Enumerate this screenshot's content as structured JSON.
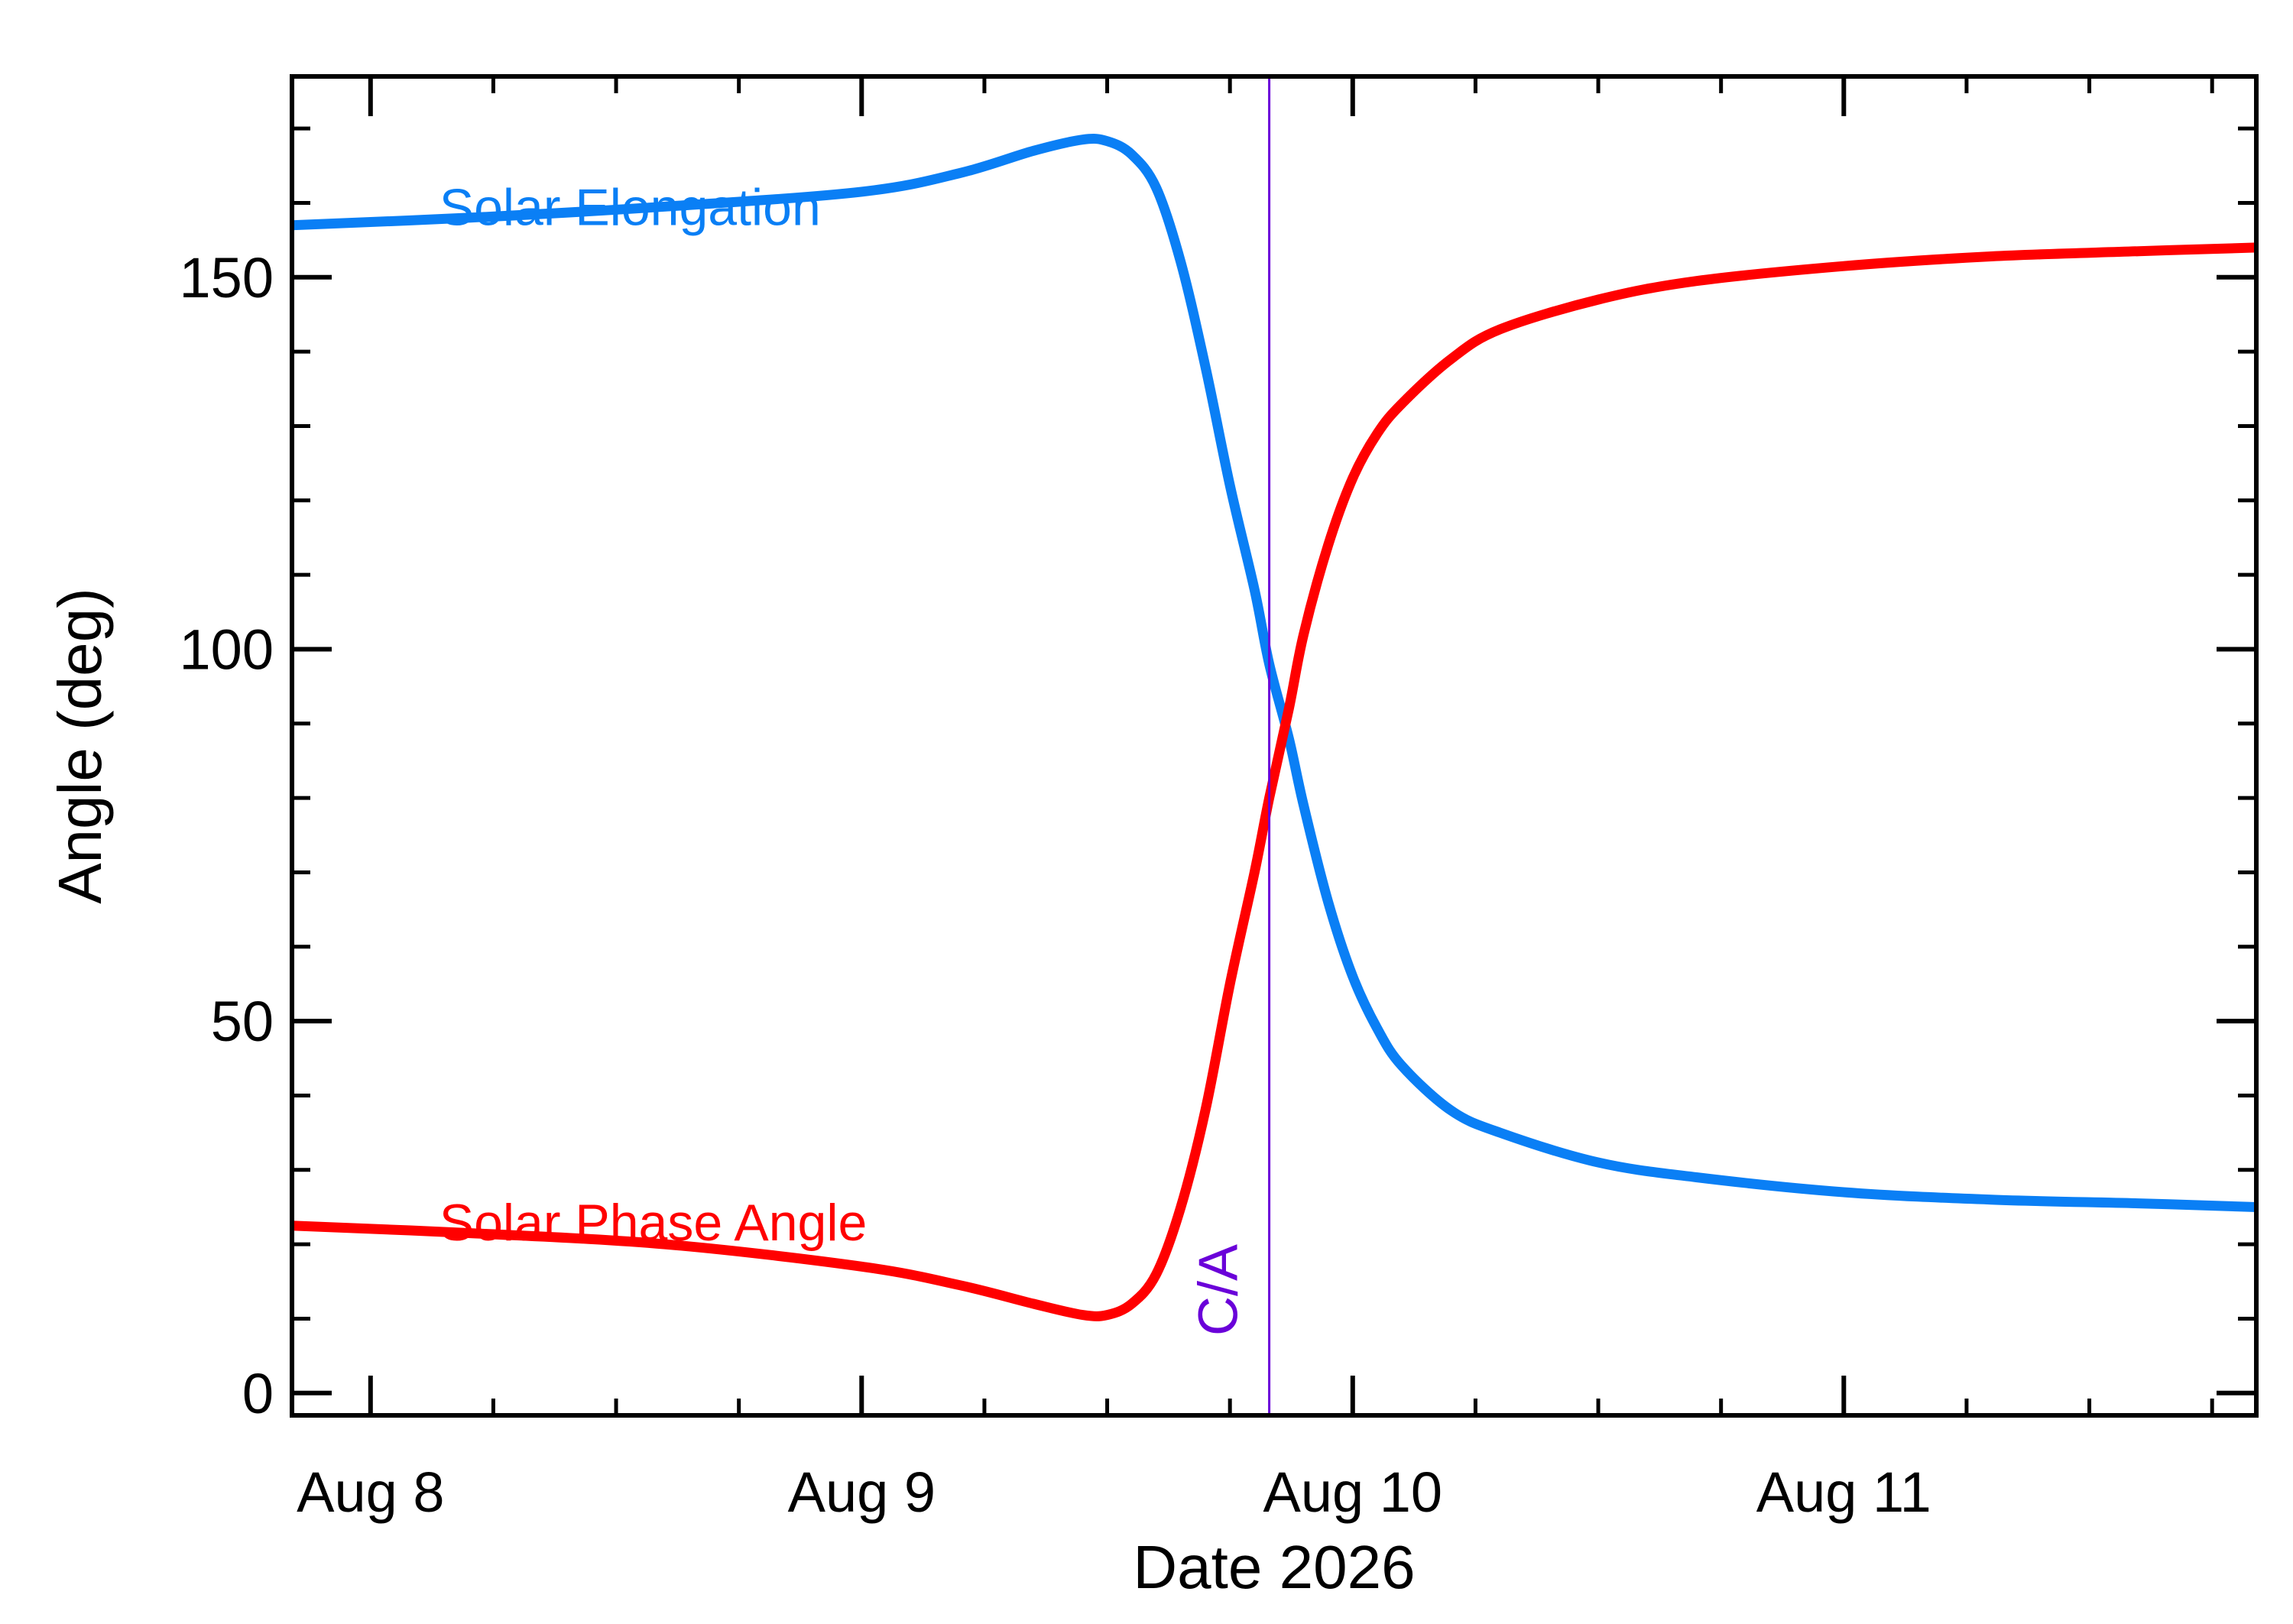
{
  "chart_data": {
    "type": "line",
    "xlabel": "Date 2026",
    "ylabel": "Angle (deg)",
    "xlim": [
      7.84,
      11.84
    ],
    "ylim": [
      -3,
      177
    ],
    "x_ticks": [
      {
        "value": 8,
        "label": "Aug  8"
      },
      {
        "value": 9,
        "label": "Aug  9"
      },
      {
        "value": 10,
        "label": "Aug 10"
      },
      {
        "value": 11,
        "label": "Aug 11"
      }
    ],
    "y_ticks": [
      {
        "value": 0,
        "label": "0"
      },
      {
        "value": 50,
        "label": "50"
      },
      {
        "value": 100,
        "label": "100"
      },
      {
        "value": 150,
        "label": "150"
      }
    ],
    "y_minor_step": 10,
    "x_minor_step": 0.25,
    "grid": false,
    "marker": {
      "label": "C/A",
      "x": 9.83,
      "color": "#6a00d9"
    },
    "series": [
      {
        "name": "Solar Elongation",
        "color": "#0a7ff5",
        "x": [
          7.84,
          8.2,
          8.6,
          9.0,
          9.2,
          9.35,
          9.45,
          9.5,
          9.55,
          9.6,
          9.65,
          9.7,
          9.75,
          9.8,
          9.83,
          9.87,
          9.9,
          9.95,
          10.0,
          10.05,
          10.1,
          10.2,
          10.3,
          10.5,
          10.7,
          11.0,
          11.3,
          11.6,
          11.84
        ],
        "y": [
          157,
          158,
          159.5,
          161.5,
          164,
          167,
          168.5,
          168.3,
          166.5,
          162,
          152,
          138,
          122,
          108,
          98,
          88,
          79,
          66,
          56,
          49,
          44,
          38,
          35,
          31,
          29,
          27,
          26,
          25.5,
          25
        ]
      },
      {
        "name": "Solar Phase Angle",
        "color": "#ff0000",
        "x": [
          7.84,
          8.2,
          8.6,
          9.0,
          9.2,
          9.35,
          9.45,
          9.5,
          9.55,
          9.6,
          9.65,
          9.7,
          9.75,
          9.8,
          9.83,
          9.87,
          9.9,
          9.95,
          10.0,
          10.05,
          10.1,
          10.2,
          10.3,
          10.5,
          10.7,
          11.0,
          11.3,
          11.6,
          11.84
        ],
        "y": [
          22.5,
          21.5,
          20,
          17,
          14.5,
          12,
          10.5,
          10.5,
          12,
          16,
          25,
          38,
          55,
          70,
          80,
          92,
          102,
          114,
          123,
          129,
          133,
          139,
          143,
          147,
          149.5,
          151.5,
          152.8,
          153.5,
          154
        ]
      }
    ],
    "annotations": [
      {
        "text": "Solar Elongation",
        "series": 0,
        "x": 8.14,
        "y": 159.5
      },
      {
        "text": "Solar Phase Angle",
        "series": 1,
        "x": 8.14,
        "y": 23
      }
    ]
  }
}
